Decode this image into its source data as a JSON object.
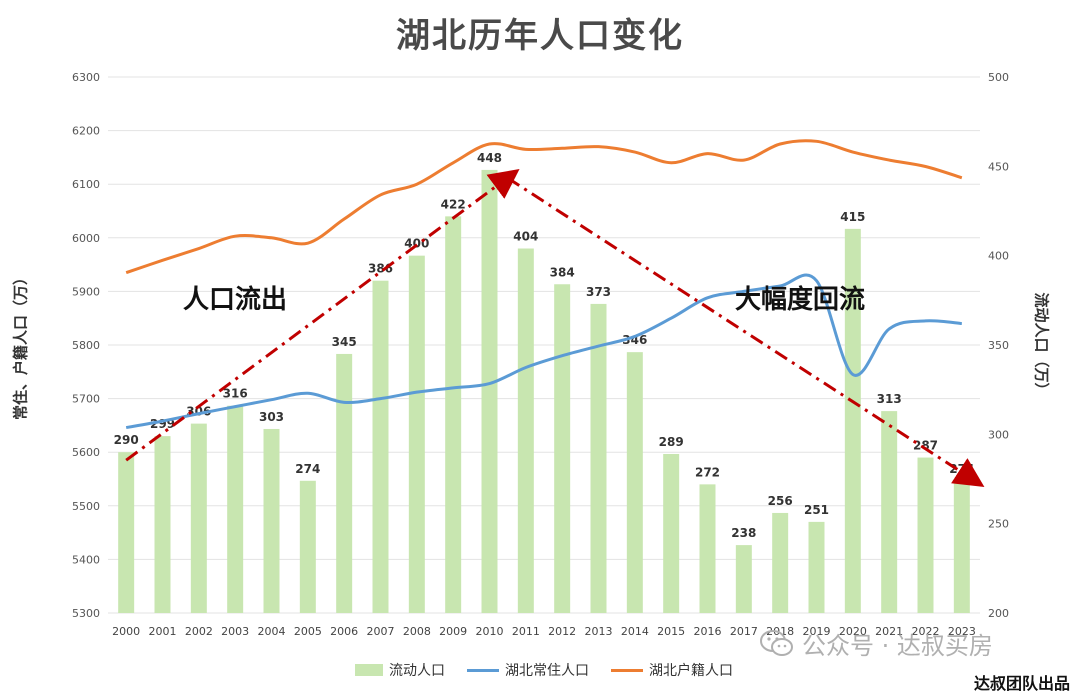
{
  "title": "湖北历年人口变化",
  "ylabel_left": "常住、户籍人口（万）",
  "ylabel_right": "流动人口（万）",
  "annotations": {
    "outflow": "人口流出",
    "backflow": "大幅度回流"
  },
  "watermark": "公众号 · 达叔买房",
  "credit": "达叔团队出品",
  "legend": {
    "bar": "流动人口",
    "blue": "湖北常住人口",
    "orange": "湖北户籍人口"
  },
  "colors": {
    "bar": "#c8e6b0",
    "blue": "#5b9bd5",
    "orange": "#ed7d31",
    "arrow": "#c00000"
  },
  "chart_data": {
    "type": "bar",
    "categories": [
      "2000",
      "2001",
      "2002",
      "2003",
      "2004",
      "2005",
      "2006",
      "2007",
      "2008",
      "2009",
      "2010",
      "2011",
      "2012",
      "2013",
      "2014",
      "2015",
      "2016",
      "2017",
      "2018",
      "2019",
      "2020",
      "2021",
      "2022",
      "2023"
    ],
    "series": [
      {
        "name": "流动人口",
        "type": "bar",
        "axis": "right",
        "values": [
          290,
          299,
          306,
          316,
          303,
          274,
          345,
          386,
          400,
          422,
          448,
          404,
          384,
          373,
          346,
          289,
          272,
          238,
          256,
          251,
          415,
          313,
          287,
          274
        ]
      },
      {
        "name": "湖北常住人口",
        "type": "line",
        "axis": "left",
        "values": [
          5646,
          5658,
          5672,
          5685,
          5698,
          5710,
          5693,
          5700,
          5712,
          5720,
          5728,
          5758,
          5780,
          5798,
          5816,
          5850,
          5888,
          5900,
          5910,
          5920,
          5745,
          5830,
          5845,
          5840
        ]
      },
      {
        "name": "湖北户籍人口",
        "type": "line",
        "axis": "left",
        "values": [
          5935,
          5958,
          5980,
          6003,
          6000,
          5990,
          6035,
          6080,
          6100,
          6140,
          6175,
          6165,
          6167,
          6170,
          6160,
          6140,
          6157,
          6145,
          6175,
          6180,
          6160,
          6145,
          6133,
          6112
        ]
      }
    ],
    "ylim_left": [
      5300,
      6300
    ],
    "yticks_left": [
      5300,
      5400,
      5500,
      5600,
      5700,
      5800,
      5900,
      6000,
      6100,
      6200,
      6300
    ],
    "ylim_right": [
      200,
      500
    ],
    "yticks_right": [
      200,
      250,
      300,
      350,
      400,
      450,
      500
    ],
    "grid": true,
    "legend_position": "bottom"
  }
}
